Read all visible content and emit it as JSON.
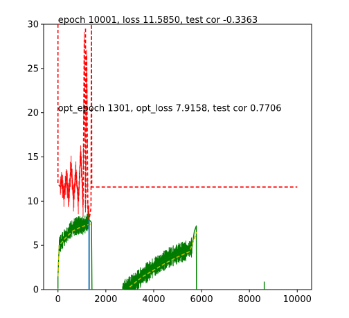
{
  "chart_data": {
    "type": "line",
    "title": "",
    "xlabel": "",
    "ylabel": "",
    "xlim": [
      -600,
      10600
    ],
    "ylim": [
      0,
      30
    ],
    "x_ticks": [
      0,
      2000,
      4000,
      6000,
      8000,
      10000
    ],
    "y_ticks": [
      0,
      5,
      10,
      15,
      20,
      25,
      30
    ],
    "x_tick_labels": [
      "0",
      "2000",
      "4000",
      "6000",
      "8000",
      "10000"
    ],
    "y_tick_labels": [
      "0",
      "5",
      "10",
      "15",
      "20",
      "25",
      "30"
    ],
    "grid": false,
    "annotations": [
      {
        "text": "epoch 10001, loss 11.5850, test cor -0.3363",
        "x": 0,
        "y": 30
      },
      {
        "text": "opt_epoch 1301, opt_loss 7.9158, test cor 0.7706",
        "x": 0,
        "y": 20
      }
    ],
    "vertical_line": {
      "x": 1301,
      "ymin": 0,
      "ymax": 7.9,
      "color": "#1f77b4"
    },
    "series": [
      {
        "style": "dashed",
        "color": "#ff0000",
        "points": [
          [
            0,
            30
          ],
          [
            0,
            12
          ],
          [
            100,
            11.6
          ],
          [
            150,
            12.5
          ],
          [
            250,
            10.5
          ],
          [
            350,
            12.8
          ],
          [
            450,
            10.3
          ],
          [
            550,
            14.2
          ],
          [
            650,
            10.1
          ],
          [
            750,
            13.5
          ],
          [
            850,
            9.9
          ],
          [
            950,
            15.6
          ],
          [
            1050,
            9.6
          ],
          [
            1100,
            28.2
          ],
          [
            1150,
            9.3
          ],
          [
            1200,
            26.5
          ],
          [
            1250,
            9.0
          ],
          [
            1301,
            7.9
          ],
          [
            1380,
            9.2
          ],
          [
            1400,
            30
          ],
          [
            1410,
            11.6
          ],
          [
            3000,
            11.6
          ],
          [
            5800,
            11.6
          ],
          [
            10000,
            11.6
          ]
        ]
      },
      {
        "style": "dashed",
        "color": "#ff0000",
        "points": [
          [
            1150,
            29.5
          ],
          [
            1170,
            10.5
          ]
        ]
      },
      {
        "style": "solid",
        "color": "#008000",
        "points": [
          [
            0,
            0.1
          ],
          [
            0,
            1.5
          ],
          [
            50,
            5.0
          ],
          [
            200,
            5.6
          ],
          [
            300,
            6.0
          ],
          [
            400,
            6.2
          ],
          [
            500,
            6.7
          ],
          [
            600,
            6.9
          ],
          [
            700,
            7.1
          ],
          [
            800,
            7.2
          ],
          [
            900,
            7.3
          ],
          [
            1000,
            7.2
          ],
          [
            1100,
            7.3
          ],
          [
            1200,
            7.5
          ],
          [
            1301,
            7.9
          ],
          [
            1400,
            7.6
          ],
          [
            1420,
            0.0
          ]
        ]
      },
      {
        "style": "solid",
        "color": "#008000",
        "points": [
          [
            2700,
            0.0
          ],
          [
            2900,
            0.2
          ],
          [
            3100,
            0.6
          ],
          [
            3300,
            1.0
          ],
          [
            3500,
            1.5
          ],
          [
            3700,
            1.9
          ],
          [
            3900,
            2.3
          ],
          [
            4100,
            2.7
          ],
          [
            4300,
            3.0
          ],
          [
            4500,
            3.4
          ],
          [
            4700,
            3.7
          ],
          [
            4900,
            3.9
          ],
          [
            5100,
            4.2
          ],
          [
            5300,
            4.3
          ],
          [
            5500,
            4.6
          ],
          [
            5600,
            4.8
          ],
          [
            5700,
            6.6
          ],
          [
            5780,
            7.2
          ],
          [
            5790,
            0.0
          ]
        ]
      },
      {
        "style": "dashed",
        "color": "#bfbf00",
        "points": [
          [
            0,
            1.5
          ],
          [
            50,
            5.0
          ],
          [
            300,
            5.8
          ],
          [
            600,
            6.6
          ],
          [
            900,
            7.0
          ],
          [
            1200,
            7.3
          ],
          [
            1350,
            7.4
          ],
          [
            1400,
            7.2
          ]
        ]
      },
      {
        "style": "dashed",
        "color": "#bfbf00",
        "points": [
          [
            3000,
            0.3
          ],
          [
            3500,
            1.4
          ],
          [
            4000,
            2.2
          ],
          [
            4500,
            3.0
          ],
          [
            5000,
            3.7
          ],
          [
            5500,
            4.3
          ],
          [
            5700,
            5.8
          ],
          [
            5790,
            6.5
          ]
        ]
      },
      {
        "style": "solid",
        "color": "#008000",
        "points": [
          [
            8620,
            0.0
          ],
          [
            8620,
            0.9
          ]
        ]
      }
    ]
  }
}
